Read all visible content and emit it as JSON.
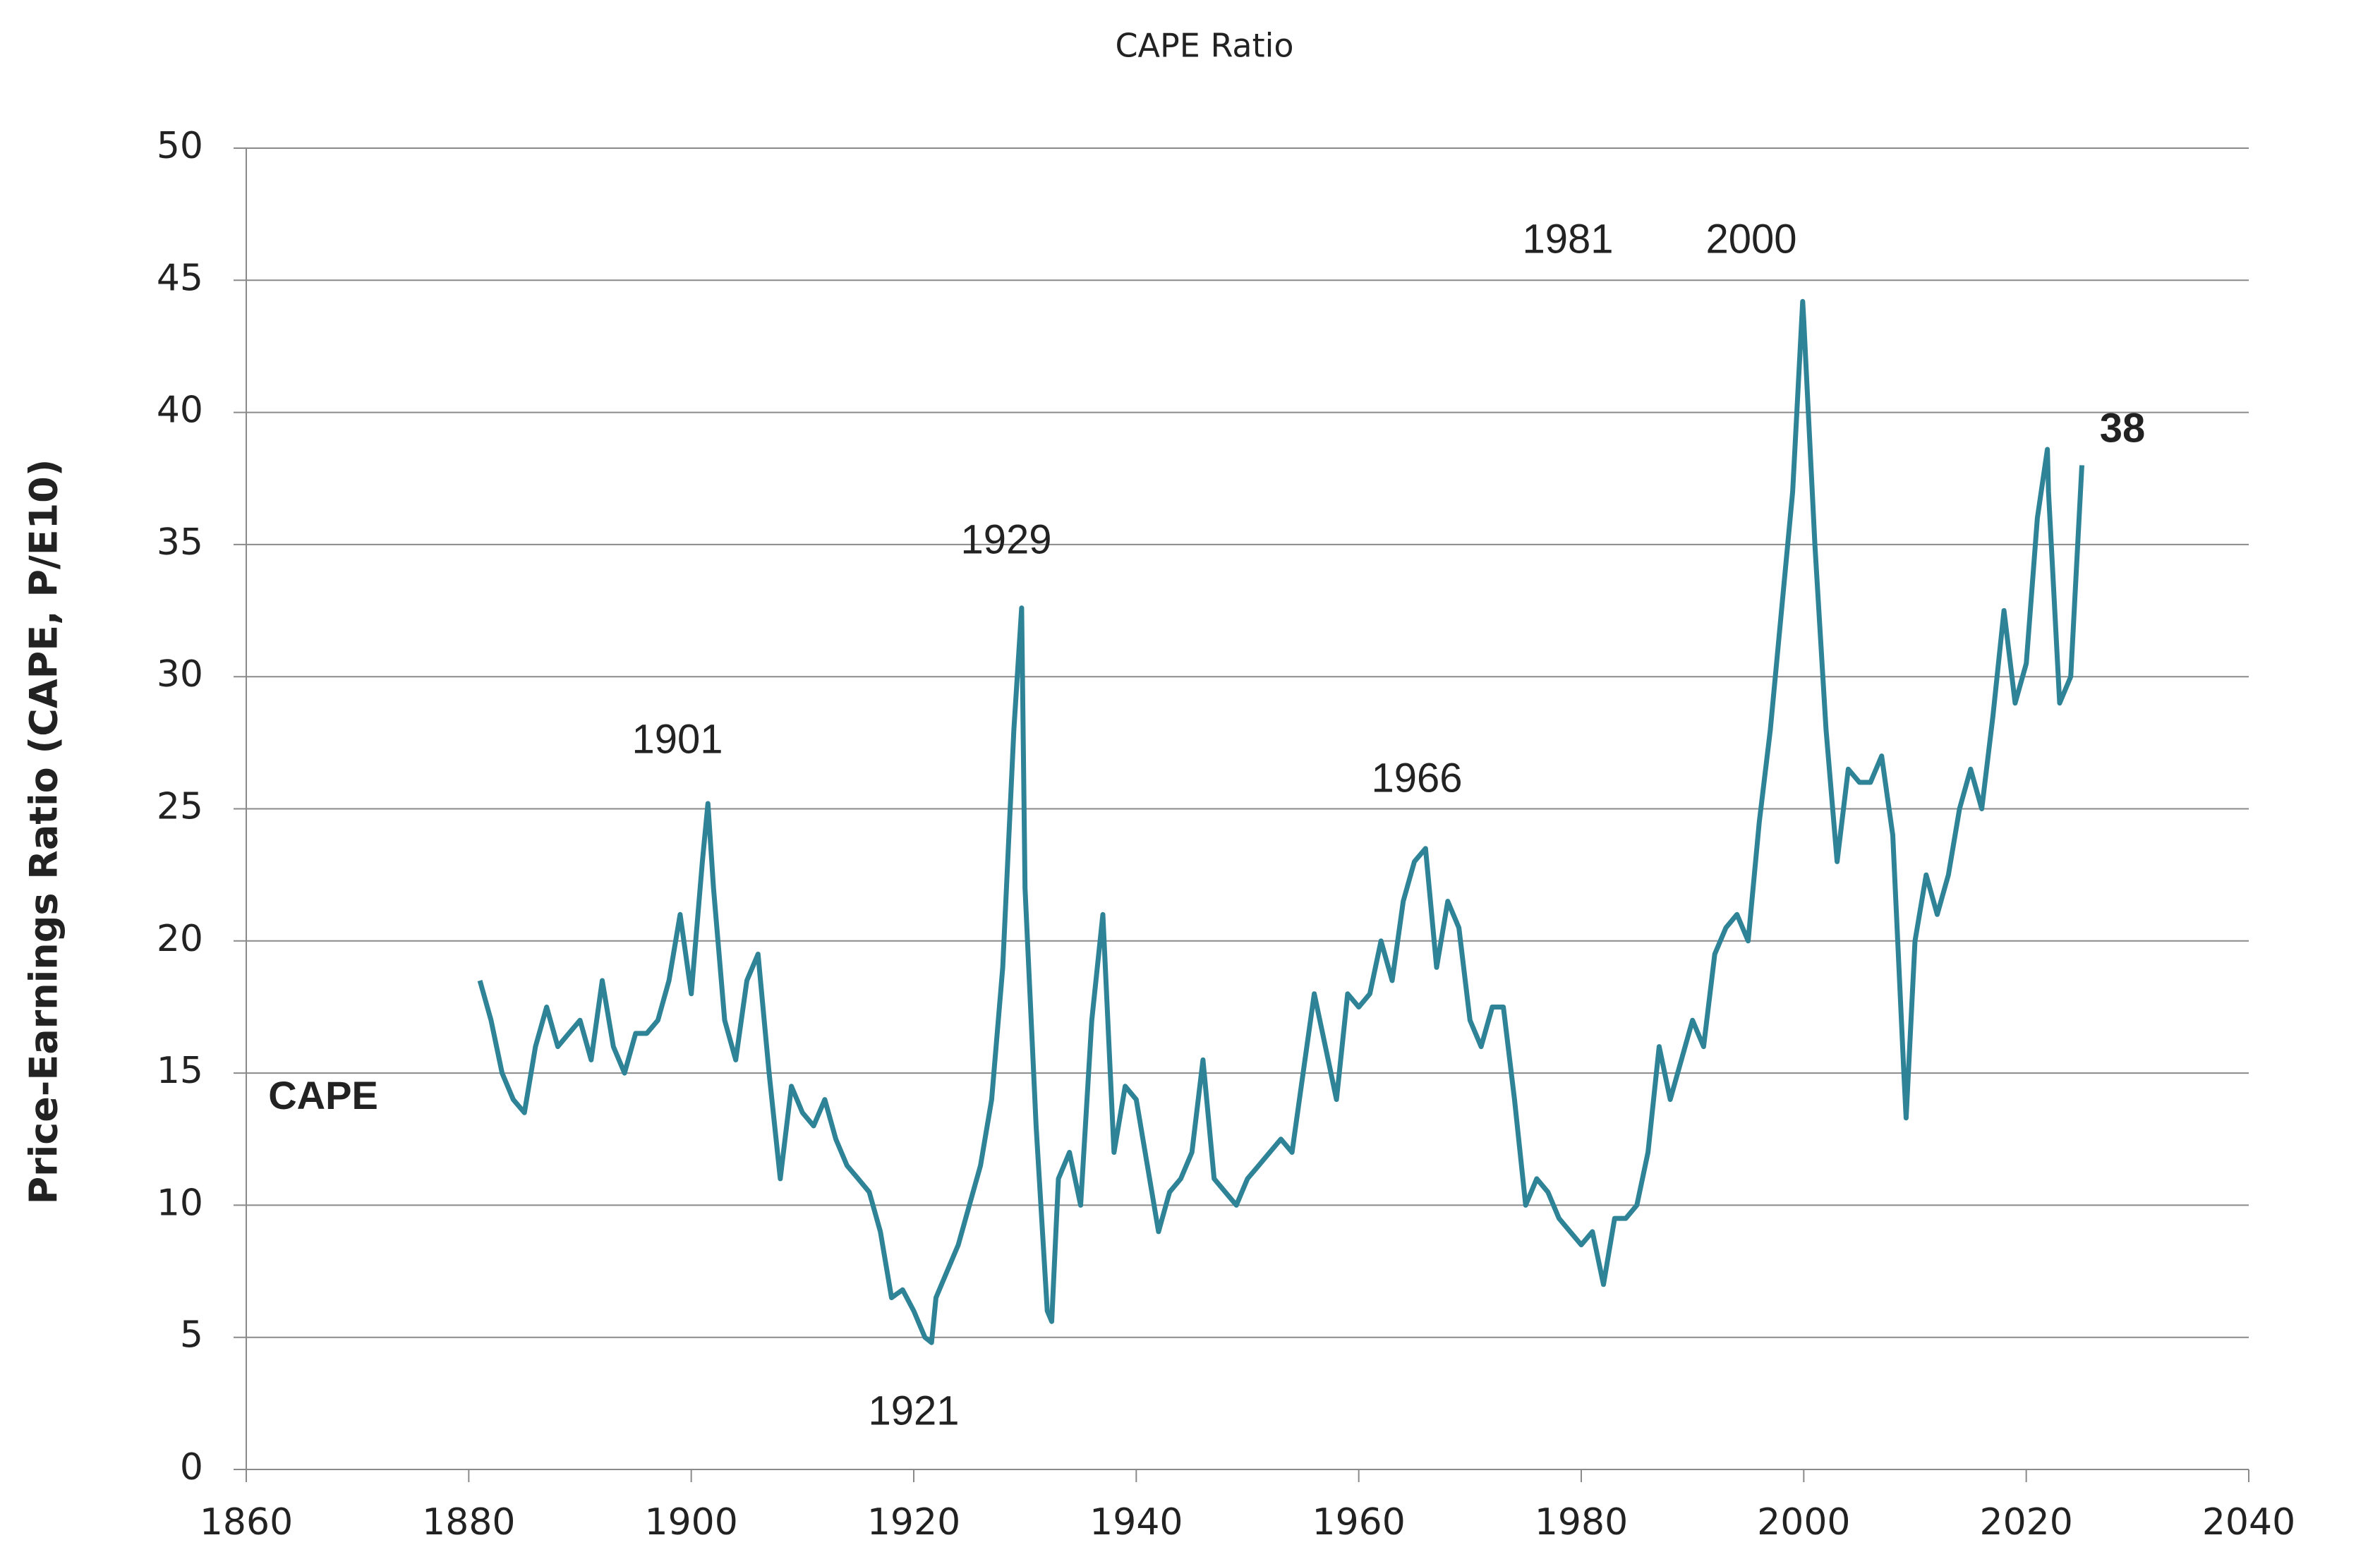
{
  "chart_data": {
    "type": "line",
    "title": "CAPE Ratio",
    "y_label": "Price-Earnings Ratio (CAPE, P/E10)",
    "x": [
      1881,
      1882,
      1883,
      1884,
      1885,
      1886,
      1887,
      1888,
      1889,
      1890,
      1891,
      1892,
      1893,
      1894,
      1895,
      1896,
      1897,
      1898,
      1899,
      1900,
      1901,
      1901.5,
      1902,
      1903,
      1904,
      1905,
      1906,
      1907,
      1908,
      1909,
      1910,
      1911,
      1912,
      1913,
      1914,
      1915,
      1916,
      1917,
      1918,
      1919,
      1920,
      1921,
      1921.6,
      1922,
      1923,
      1924,
      1925,
      1926,
      1927,
      1928,
      1929,
      1929.7,
      1930,
      1931,
      1932,
      1932.4,
      1933,
      1934,
      1935,
      1936,
      1937,
      1938,
      1939,
      1940,
      1941,
      1942,
      1943,
      1944,
      1945,
      1946,
      1947,
      1948,
      1949,
      1950,
      1951,
      1952,
      1953,
      1954,
      1955,
      1956,
      1957,
      1958,
      1959,
      1960,
      1961,
      1962,
      1963,
      1964,
      1965,
      1966,
      1967,
      1968,
      1969,
      1970,
      1971,
      1972,
      1973,
      1974,
      1975,
      1976,
      1977,
      1978,
      1979,
      1980,
      1981,
      1982,
      1983,
      1984,
      1985,
      1986,
      1987,
      1988,
      1989,
      1990,
      1991,
      1992,
      1993,
      1994,
      1995,
      1996,
      1997,
      1998,
      1999,
      1999.9,
      2000,
      2001,
      2002,
      2003,
      2004,
      2005,
      2006,
      2007,
      2008,
      2009,
      2009.2,
      2010,
      2011,
      2012,
      2013,
      2014,
      2015,
      2016,
      2017,
      2018,
      2019,
      2020,
      2021,
      2021.9,
      2022,
      2023,
      2024,
      2025
    ],
    "series": [
      {
        "name": "CAPE",
        "color": "#2f8397",
        "values": [
          18.5,
          17,
          15,
          14,
          13.5,
          16,
          17.5,
          16,
          16.5,
          17,
          15.5,
          18.5,
          16,
          15,
          16.5,
          16.5,
          17,
          18.5,
          21,
          18,
          23,
          25.2,
          22,
          17,
          15.5,
          18.5,
          19.5,
          15,
          11,
          14.5,
          13.5,
          13,
          14,
          12.5,
          11.5,
          11,
          10.5,
          9,
          6.5,
          6.8,
          6,
          5,
          4.8,
          6.5,
          7.5,
          8.5,
          10,
          11.5,
          14,
          19,
          28,
          32.6,
          22,
          13,
          6,
          5.6,
          11,
          12,
          10,
          17,
          21,
          12,
          14.5,
          14,
          11.5,
          9,
          10.5,
          11,
          12,
          15.5,
          11,
          10.5,
          10,
          11,
          11.5,
          12,
          12.5,
          12,
          15,
          18,
          16,
          14,
          18,
          17.5,
          18,
          20,
          18.5,
          21.5,
          23,
          23.5,
          19,
          21.5,
          20.5,
          17,
          16,
          17.5,
          17.5,
          14,
          10,
          11,
          10.5,
          9.5,
          9,
          8.5,
          9,
          7,
          9.5,
          9.5,
          10,
          12,
          16,
          14,
          15.5,
          17,
          16,
          19.5,
          20.5,
          21,
          20,
          24.5,
          28,
          32.5,
          37,
          44.2,
          43.5,
          35,
          28,
          23,
          26.5,
          26,
          26,
          27,
          24,
          15,
          13.3,
          20,
          22.5,
          21,
          22.5,
          25,
          26.5,
          25,
          28.5,
          32.5,
          29,
          30.5,
          36,
          38.6,
          37,
          29,
          30,
          38
        ]
      }
    ],
    "annotations": [
      "1901",
      "1929",
      "1921",
      "1966",
      "1981",
      "2000",
      "38"
    ],
    "xlim": [
      1860,
      2040
    ],
    "xticks": [
      1860,
      1880,
      1900,
      1920,
      1940,
      1960,
      1980,
      2000,
      2020,
      2040
    ],
    "ylim": [
      0,
      50
    ],
    "yticks": [
      0,
      5,
      10,
      15,
      20,
      25,
      30,
      35,
      40,
      45,
      50
    ],
    "grid": true
  }
}
